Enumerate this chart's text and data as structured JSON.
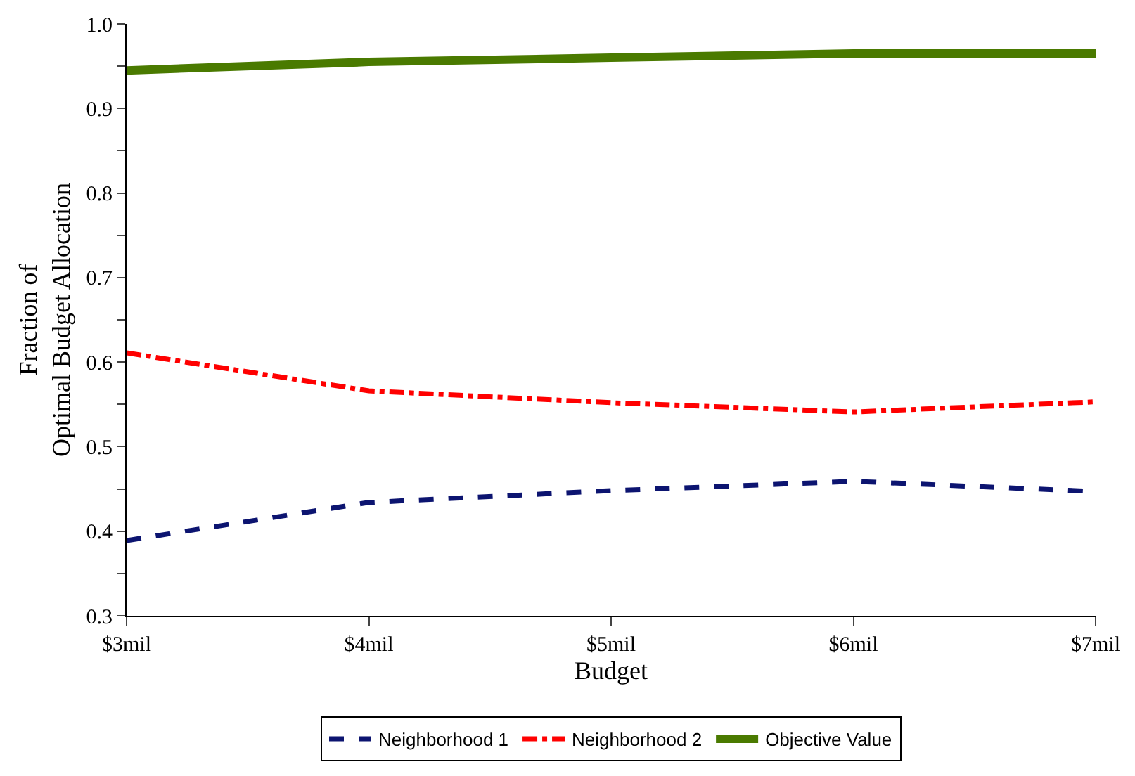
{
  "chart_data": {
    "type": "line",
    "xlabel": "Budget",
    "ylabel": "Fraction of\nOptimal Budget Allocation",
    "categories": [
      "$3mil",
      "$4mil",
      "$5mil",
      "$6mil",
      "$7mil"
    ],
    "series": [
      {
        "name": "Neighborhood 1",
        "color": "#0c1470",
        "line_style": "dashed",
        "values": [
          0.389,
          0.434,
          0.448,
          0.459,
          0.447
        ]
      },
      {
        "name": "Neighborhood 2",
        "color": "#ff0000",
        "line_style": "dashdot",
        "values": [
          0.611,
          0.566,
          0.552,
          0.541,
          0.553
        ]
      },
      {
        "name": "Objective Value",
        "color": "#4a7a00",
        "line_style": "solid",
        "values": [
          0.945,
          0.955,
          0.96,
          0.965,
          0.965
        ]
      }
    ],
    "ylim": [
      0.3,
      1.0
    ],
    "yticks": [
      "0.3",
      {
        "value": 0.35,
        "label": null
      },
      0.4,
      {
        "value": 0.45,
        "label": null
      },
      0.5,
      {
        "value": 0.55,
        "label": null
      },
      0.6,
      {
        "value": 0.65,
        "label": null
      },
      0.7,
      {
        "value": 0.75,
        "label": null
      },
      0.8,
      {
        "value": 0.85,
        "label": null
      },
      0.9,
      {
        "value": 0.95,
        "label": null
      },
      "1.0"
    ],
    "legend": "bottom",
    "marker": "none"
  }
}
